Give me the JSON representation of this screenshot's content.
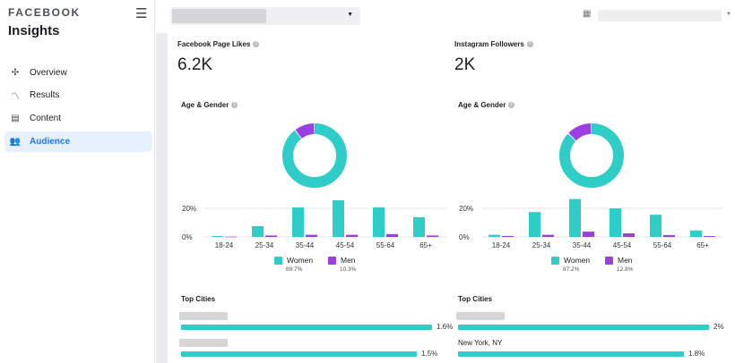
{
  "sidebar": {
    "brand": "FACEBOOK",
    "title": "Insights",
    "menu_icon": "hamburger-icon",
    "items": [
      {
        "label": "Overview",
        "icon": "overview-icon"
      },
      {
        "label": "Results",
        "icon": "results-icon"
      },
      {
        "label": "Content",
        "icon": "content-icon"
      },
      {
        "label": "Audience",
        "icon": "audience-icon",
        "active": true
      }
    ]
  },
  "topbar": {
    "calendar_icon": "calendar-icon"
  },
  "colors": {
    "women": "#2ecdc7",
    "men": "#9b3fe0",
    "accent": "#1877f2"
  },
  "columns": [
    {
      "metric_label": "Facebook Page Likes",
      "metric_value": "6.2K",
      "section_label": "Age & Gender",
      "chart_data": {
        "type": "bar",
        "categories": [
          "18-24",
          "25-34",
          "35-44",
          "45-54",
          "55-64",
          "65+"
        ],
        "yticks": [
          "0%",
          "20%"
        ],
        "ylim": [
          0,
          28
        ],
        "series": [
          {
            "name": "Women",
            "values": [
              0.6,
              7.5,
              20.6,
              25.6,
              20.6,
              13.8
            ]
          },
          {
            "name": "Men",
            "values": [
              0.2,
              1,
              1.5,
              1.5,
              2,
              1
            ]
          }
        ]
      },
      "donut": {
        "women_pct": 89.7,
        "men_pct": 10.3
      },
      "legend": [
        {
          "label": "Women",
          "pct": "89.7%"
        },
        {
          "label": "Men",
          "pct": "10.3%"
        }
      ],
      "cities_label": "Top Cities",
      "cities": [
        {
          "name": "",
          "value": "1.6%",
          "fraction": 1.6
        },
        {
          "name": "",
          "value": "1.5%",
          "fraction": 1.5
        }
      ]
    },
    {
      "metric_label": "Instagram Followers",
      "metric_value": "2K",
      "section_label": "Age & Gender",
      "chart_data": {
        "type": "bar",
        "categories": [
          "18-24",
          "25-34",
          "35-44",
          "45-54",
          "55-64",
          "65+"
        ],
        "yticks": [
          "0%",
          "20%"
        ],
        "ylim": [
          0,
          28
        ],
        "series": [
          {
            "name": "Women",
            "values": [
              1.5,
              17.4,
              26.5,
              20,
              15.5,
              4.5
            ]
          },
          {
            "name": "Men",
            "values": [
              0.7,
              1.5,
              3.7,
              2.5,
              1.3,
              0.6
            ]
          }
        ]
      },
      "donut": {
        "women_pct": 87.2,
        "men_pct": 12.8
      },
      "legend": [
        {
          "label": "Women",
          "pct": "87.2%"
        },
        {
          "label": "Men",
          "pct": "12.8%"
        }
      ],
      "cities_label": "Top Cities",
      "cities": [
        {
          "name": "",
          "value": "2%",
          "fraction": 2
        },
        {
          "name": "New York, NY",
          "value": "1.8%",
          "fraction": 1.8
        }
      ]
    }
  ]
}
